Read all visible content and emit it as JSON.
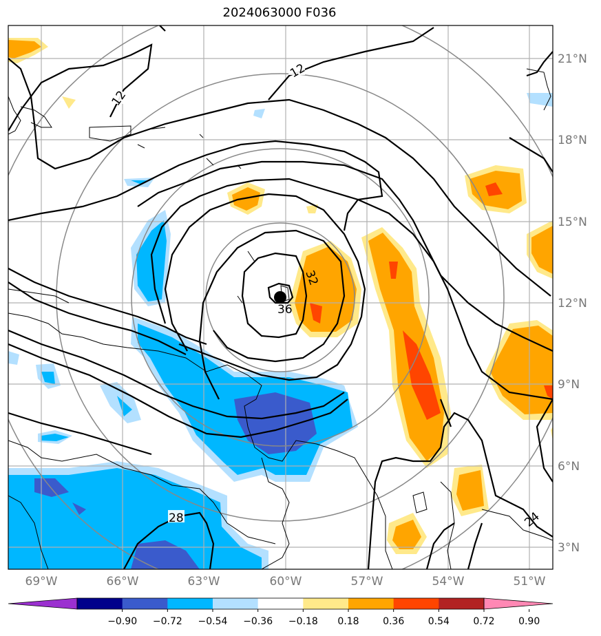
{
  "title": "2024063000 F036",
  "map": {
    "lat_labels": [
      "21°N",
      "18°N",
      "15°N",
      "12°N",
      "9°N",
      "6°N",
      "3°N"
    ],
    "lon_labels": [
      "69°W",
      "66°W",
      "63°W",
      "60°W",
      "57°W",
      "54°W",
      "51°W"
    ],
    "contour_labels": [
      "12",
      "12",
      "32",
      "36",
      "28",
      "24"
    ],
    "center_marker": "storm-center-icon"
  },
  "colorbar": {
    "ticks": [
      "−0.90",
      "−0.72",
      "−0.54",
      "−0.36",
      "−0.18",
      "0.18",
      "0.36",
      "0.54",
      "0.72",
      "0.90"
    ],
    "colors": [
      "#9b30d0",
      "#00008b",
      "#3a5bcc",
      "#00b7ff",
      "#b3e0ff",
      "#ffffff",
      "#ffe98a",
      "#ffa500",
      "#ff4500",
      "#b22222",
      "#ff88b4"
    ]
  }
}
